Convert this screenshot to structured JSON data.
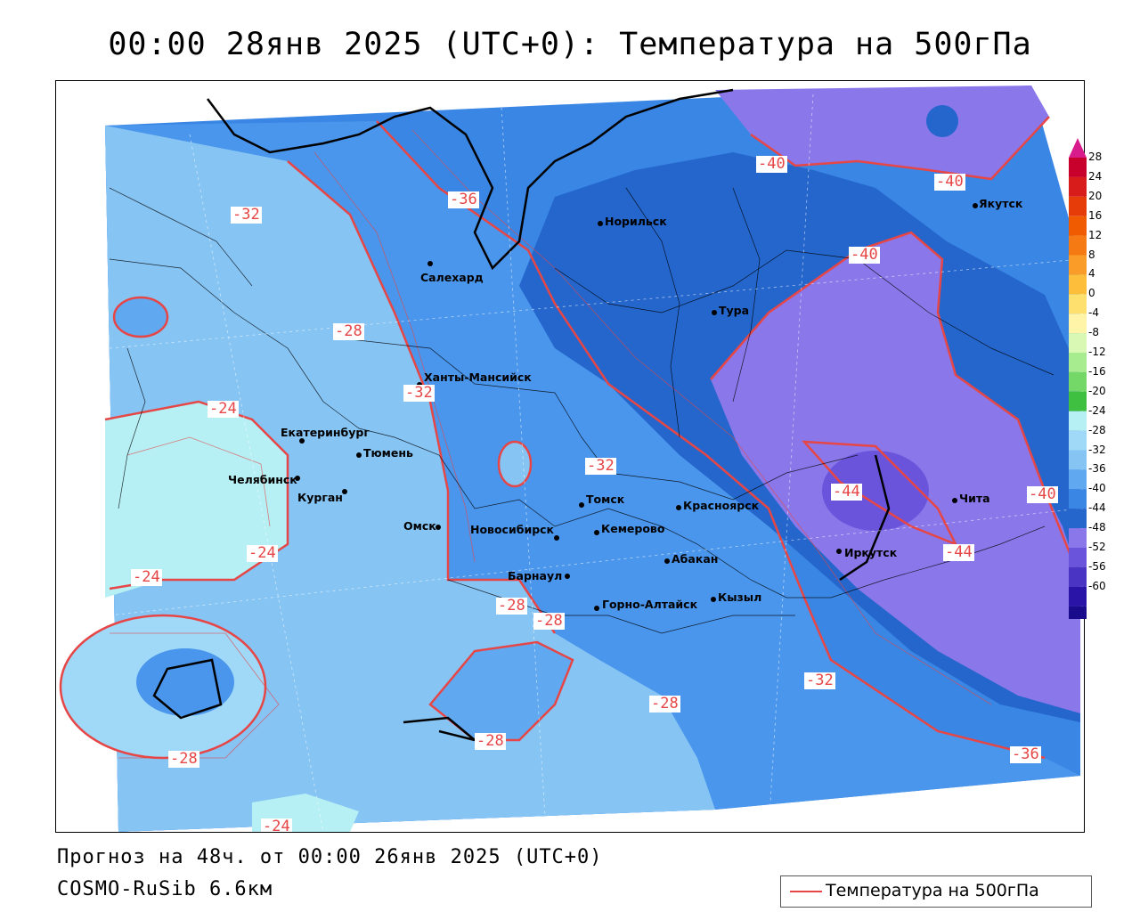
{
  "title": "00:00 28янв 2025 (UTC+0): Температура на 500гПа",
  "footer": {
    "forecast": "Прогноз на 48ч. от 00:00 26янв 2025 (UTC+0)",
    "model": "COSMO-RuSib 6.6км"
  },
  "legend": {
    "label": "Температура на 500гПа",
    "line_color": "#e64646"
  },
  "colorbar": {
    "labels": [
      "28",
      "24",
      "20",
      "16",
      "12",
      "8",
      "4",
      "0",
      "-4",
      "-8",
      "-12",
      "-16",
      "-20",
      "-24",
      "-28",
      "-32",
      "-36",
      "-40",
      "-44",
      "-48",
      "-52",
      "-56",
      "-60"
    ],
    "colors": [
      "#c8002c",
      "#d81c1c",
      "#e63c0a",
      "#f05a00",
      "#f57a14",
      "#fa9c28",
      "#fdbe3c",
      "#fee06e",
      "#fff4a8",
      "#d8f8b4",
      "#a8ec90",
      "#74d868",
      "#40c040",
      "#b6f0f4",
      "#a0d8f8",
      "#86c4f4",
      "#60a8f0",
      "#3a86e4",
      "#2466cc",
      "#8a78ea",
      "#6a54dc",
      "#4a34c4",
      "#2a14a8",
      "#1a0a8c"
    ],
    "top_arrow_color": "#d81c8c",
    "bottom_arrow_color": "#a020b0"
  },
  "cities": [
    {
      "name": "Норильск"
    },
    {
      "name": "Якутск"
    },
    {
      "name": "Салехард"
    },
    {
      "name": "Тура"
    },
    {
      "name": "Ханты-Мансийск"
    },
    {
      "name": "Екатеринбург"
    },
    {
      "name": "Тюмень"
    },
    {
      "name": "Челябинск"
    },
    {
      "name": "Курган"
    },
    {
      "name": "Омск"
    },
    {
      "name": "Томск"
    },
    {
      "name": "Красноярск"
    },
    {
      "name": "Новосибирск"
    },
    {
      "name": "Кемерово"
    },
    {
      "name": "Абакан"
    },
    {
      "name": "Барнаул"
    },
    {
      "name": "Горно-Алтайск"
    },
    {
      "name": "Кызыл"
    },
    {
      "name": "Иркутск"
    },
    {
      "name": "Чита"
    }
  ],
  "isolines": [
    {
      "label": "-40"
    },
    {
      "label": "-40"
    },
    {
      "label": "-36"
    },
    {
      "label": "-32"
    },
    {
      "label": "-40"
    },
    {
      "label": "-28"
    },
    {
      "label": "-32"
    },
    {
      "label": "-24"
    },
    {
      "label": "-32"
    },
    {
      "label": "-44"
    },
    {
      "label": "-40"
    },
    {
      "label": "-24"
    },
    {
      "label": "-24"
    },
    {
      "label": "-44"
    },
    {
      "label": "-28"
    },
    {
      "label": "-28"
    },
    {
      "label": "-32"
    },
    {
      "label": "-28"
    },
    {
      "label": "-28"
    },
    {
      "label": "-36"
    },
    {
      "label": "-28"
    },
    {
      "label": "-24"
    }
  ]
}
